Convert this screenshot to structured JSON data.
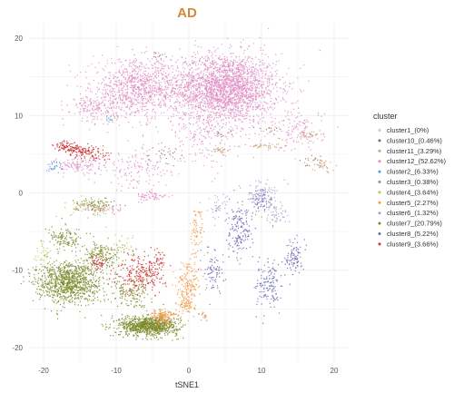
{
  "chart_data": {
    "type": "scatter",
    "title": "AD",
    "xlabel": "tSNE1",
    "ylabel": "",
    "xlim": [
      -22,
      22
    ],
    "ylim": [
      -22,
      22
    ],
    "x_ticks": [
      "-20",
      "-10",
      "0",
      "10",
      "20"
    ],
    "y_ticks": [
      "20",
      "10",
      "0",
      "-10",
      "-20"
    ],
    "grid": true,
    "legend_position": "right",
    "legend_title": "cluster",
    "title_color": "#d4883a",
    "series": [
      {
        "name": "cluster1_(0%)",
        "color": "#c8c8c8",
        "regions": []
      },
      {
        "name": "cluster10_(0.46%)",
        "color": "#8b6a4f",
        "regions": [
          [
            -4,
            17.5,
            1.5,
            0.8,
            10
          ],
          [
            5,
            7.5,
            1.5,
            0.6,
            10
          ],
          [
            11,
            8,
            2,
            0.6,
            12
          ],
          [
            17,
            4,
            2,
            1,
            15
          ],
          [
            -4,
            5,
            2,
            0.5,
            8
          ]
        ]
      },
      {
        "name": "cluster11_(3.29%)",
        "color": "#c9a27a",
        "regions": [
          [
            16.5,
            7.5,
            1.5,
            0.5,
            30
          ],
          [
            10.5,
            6,
            3,
            0.4,
            40
          ],
          [
            4,
            5.5,
            2,
            0.4,
            25
          ],
          [
            18.5,
            3.5,
            1.8,
            0.9,
            35
          ],
          [
            2,
            -16,
            1,
            0.6,
            20
          ]
        ]
      },
      {
        "name": "cluster12_(52.62%)",
        "color": "#e08fc6",
        "regions": [
          [
            5,
            13.5,
            8,
            5,
            2400
          ],
          [
            -7,
            13.5,
            7,
            4,
            900
          ],
          [
            -13,
            11,
            4,
            2,
            160
          ],
          [
            -15,
            3.5,
            4,
            1.2,
            120
          ],
          [
            -12,
            -2,
            3,
            1,
            70
          ],
          [
            15,
            8,
            4,
            3,
            130
          ],
          [
            -7,
            3,
            5,
            3,
            130
          ],
          [
            2,
            7,
            6,
            4,
            150
          ],
          [
            -5,
            -0.5,
            2.5,
            0.8,
            60
          ]
        ]
      },
      {
        "name": "cluster2_(6.33%)",
        "color": "#4e9ed6",
        "regions": [
          [
            -18.5,
            3.5,
            1.2,
            1,
            25
          ],
          [
            -11,
            9.5,
            0.6,
            0.5,
            8
          ]
        ]
      },
      {
        "name": "cluster3_(0.38%)",
        "color": "#8f8f8f",
        "regions": [
          [
            -3,
            5,
            3,
            2,
            25
          ],
          [
            10,
            -2,
            3,
            2,
            20
          ]
        ]
      },
      {
        "name": "cluster4_(3.64%)",
        "color": "#b5c25a",
        "regions": [
          [
            -9,
            -7,
            2.5,
            1.8,
            40
          ],
          [
            -13,
            -2,
            4,
            1.2,
            60
          ],
          [
            -20,
            -8,
            1.5,
            1.5,
            30
          ]
        ]
      },
      {
        "name": "cluster5_(2.27%)",
        "color": "#f49a46",
        "regions": [
          [
            0,
            -12,
            1.8,
            3.5,
            160
          ],
          [
            -3.5,
            -16,
            2,
            1.2,
            130
          ],
          [
            1,
            -5,
            1,
            4,
            70
          ],
          [
            -0.5,
            -14.5,
            1.5,
            1,
            60
          ]
        ]
      },
      {
        "name": "cluster6_(1.32%)",
        "color": "#a9a2d0",
        "regions": [
          [
            10,
            0,
            2.5,
            1.5,
            90
          ],
          [
            12,
            -3,
            2,
            1.5,
            50
          ],
          [
            4,
            -2,
            1.5,
            2,
            40
          ]
        ]
      },
      {
        "name": "cluster7_(20.79%)",
        "color": "#7d8a2a",
        "regions": [
          [
            -5.5,
            -17.2,
            4.5,
            1.4,
            950
          ],
          [
            -16.5,
            -11.5,
            5,
            3,
            1000
          ],
          [
            -17,
            -6,
            2.5,
            1.6,
            120
          ],
          [
            -12,
            -8,
            3,
            1.8,
            160
          ],
          [
            -13,
            -1.5,
            3,
            1,
            70
          ],
          [
            -8,
            -13,
            3,
            2.5,
            150
          ]
        ]
      },
      {
        "name": "cluster8_(5.22%)",
        "color": "#6d69b8",
        "regions": [
          [
            7,
            -5,
            2,
            4,
            160
          ],
          [
            11,
            -12,
            2,
            3.5,
            140
          ],
          [
            14.5,
            -8,
            1.2,
            2.5,
            90
          ],
          [
            3.5,
            -10,
            1.5,
            3,
            80
          ],
          [
            10,
            -1,
            1.5,
            1.5,
            50
          ]
        ]
      },
      {
        "name": "cluster9_(3.66%)",
        "color": "#cc3333",
        "regions": [
          [
            -6.5,
            -10.5,
            3.5,
            2.8,
            230
          ],
          [
            -15,
            5.5,
            2.5,
            1,
            90
          ],
          [
            -17,
            6,
            1.8,
            0.8,
            60
          ],
          [
            -13,
            5,
            3,
            1,
            60
          ],
          [
            -12.5,
            -9,
            1,
            1.2,
            40
          ],
          [
            -4,
            -9,
            1,
            1.5,
            40
          ]
        ]
      }
    ]
  }
}
